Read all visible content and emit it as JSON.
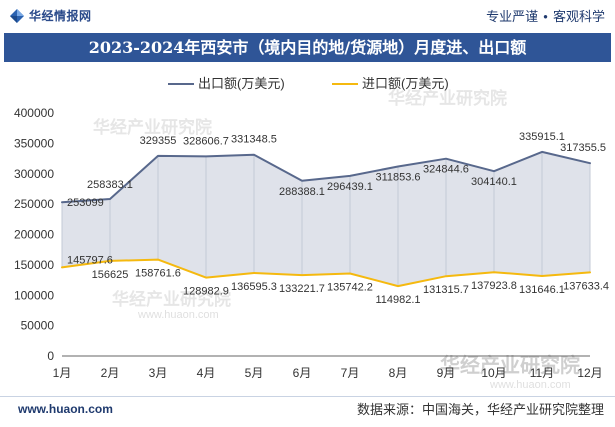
{
  "header": {
    "logo_icon": "huajing-logo-icon",
    "logo_text": "华经情报网",
    "slogan_left": "专业严谨",
    "slogan_dot": "●",
    "slogan_right": "客观科学"
  },
  "colors": {
    "title_bar": "#2f5597",
    "brand_text": "#2a4a8a"
  },
  "chart_data": {
    "type": "line",
    "title": "2023-2024年西安市（境内目的地/货源地）月度进、出口额",
    "categories": [
      "1月",
      "2月",
      "3月",
      "4月",
      "5月",
      "6月",
      "7月",
      "8月",
      "9月",
      "10月",
      "11月",
      "12月"
    ],
    "ylim": [
      0,
      400000
    ],
    "yticks": [
      0,
      50000,
      100000,
      150000,
      200000,
      250000,
      300000,
      350000,
      400000
    ],
    "grid": false,
    "legend_position": "top-center",
    "fill_between_series": true,
    "band_color": "#dfe2ea",
    "series": [
      {
        "name": "出口额(万美元)",
        "color": "#58688c",
        "values": [
          253099,
          258383.1,
          329355,
          328606.7,
          331348.5,
          288388.1,
          296439.1,
          311853.6,
          324844.6,
          304140.1,
          335915.1,
          317355.5
        ]
      },
      {
        "name": "进口额(万美元)",
        "color": "#f5b90f",
        "values": [
          145797.6,
          156625,
          158761.6,
          128982.9,
          136595.3,
          133221.7,
          135742.2,
          114982.1,
          131315.7,
          137923.8,
          131646.1,
          137633.4
        ]
      }
    ]
  },
  "footer": {
    "website": "www.huaon.com",
    "source": "数据来源：中国海关，华经产业研究院整理"
  },
  "watermark": {
    "brand": "华经产业研究院",
    "site": "www.huaon.com"
  }
}
